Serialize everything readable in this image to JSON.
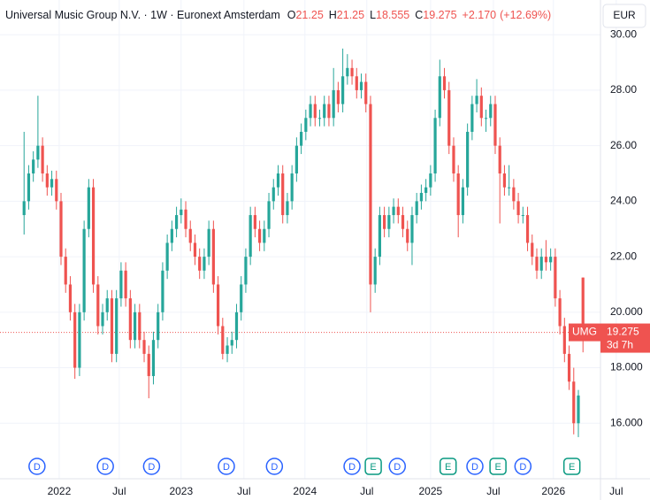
{
  "chart_data": {
    "type": "candlestick",
    "title": "Universal Music Group N.V. · 1W · Euronext Amsterdam",
    "legend_ohlc": [
      {
        "label": "O",
        "value": 21.25
      },
      {
        "label": "H",
        "value": 21.25
      },
      {
        "label": "L",
        "value": 18.555
      },
      {
        "label": "C",
        "value": 19.275
      }
    ],
    "change": "+2.170",
    "change_pct": "(+12.69%)",
    "currency": "EUR",
    "symbol": "UMG",
    "last_price": 19.275,
    "last_price_label": "19.275",
    "countdown": "3d 7h",
    "up_color": "#26a69a",
    "down_color": "#ef5350",
    "grid": true,
    "ylim": [
      14,
      31.25
    ],
    "yticks": [
      {
        "value": 16,
        "label": "16.000"
      },
      {
        "value": 18,
        "label": "18.000"
      },
      {
        "value": 20,
        "label": "20.000"
      },
      {
        "value": 22,
        "label": "22.00"
      },
      {
        "value": 24,
        "label": "24.00"
      },
      {
        "value": 26,
        "label": "26.00"
      },
      {
        "value": 28,
        "label": "28.00"
      },
      {
        "value": 30,
        "label": "30.00"
      }
    ],
    "xlim": [
      -1,
      129
    ],
    "xticks": [
      {
        "value": 7.6,
        "label": "2022"
      },
      {
        "value": 20.6,
        "label": "Jul"
      },
      {
        "value": 34,
        "label": "2023"
      },
      {
        "value": 47.6,
        "label": "Jul"
      },
      {
        "value": 60.8,
        "label": "2024"
      },
      {
        "value": 74.2,
        "label": "Jul"
      },
      {
        "value": 88,
        "label": "2025"
      },
      {
        "value": 101.6,
        "label": "Jul"
      },
      {
        "value": 114.6,
        "label": "2026"
      },
      {
        "value": 128.2,
        "label": "Jul"
      }
    ],
    "events": [
      {
        "label": "D",
        "x": 2.8
      },
      {
        "label": "D",
        "x": 17.6
      },
      {
        "label": "D",
        "x": 27.6
      },
      {
        "label": "D",
        "x": 43.8
      },
      {
        "label": "D",
        "x": 54.2
      },
      {
        "label": "D",
        "x": 71
      },
      {
        "label": "E",
        "x": 75.6
      },
      {
        "label": "D",
        "x": 80.8
      },
      {
        "label": "E",
        "x": 91.8
      },
      {
        "label": "D",
        "x": 97.6
      },
      {
        "label": "E",
        "x": 102.6
      },
      {
        "label": "D",
        "x": 108
      },
      {
        "label": "E",
        "x": 118.6
      }
    ],
    "ohlc": [
      [
        23.5,
        26.5,
        22.8,
        24
      ],
      [
        24,
        25.3,
        23.7,
        25
      ],
      [
        25,
        25.8,
        24.7,
        25.5
      ],
      [
        25.5,
        27.8,
        25.2,
        26
      ],
      [
        26,
        26.3,
        24.7,
        25
      ],
      [
        25,
        25.3,
        24.2,
        24.5
      ],
      [
        24.5,
        25.1,
        24.2,
        24.8
      ],
      [
        24.8,
        25.1,
        23.7,
        24
      ],
      [
        24,
        24.3,
        21.7,
        22
      ],
      [
        22,
        22.3,
        20.7,
        21
      ],
      [
        21,
        21.3,
        19.7,
        20
      ],
      [
        20,
        20.3,
        17.6,
        18
      ],
      [
        18,
        20.3,
        17.7,
        20
      ],
      [
        20,
        23.3,
        19.7,
        23
      ],
      [
        23,
        24.8,
        22.7,
        24.5
      ],
      [
        24.5,
        24.8,
        20.7,
        21
      ],
      [
        21,
        21.3,
        19.2,
        19.5
      ],
      [
        19.5,
        20.3,
        19.2,
        20
      ],
      [
        20,
        20.8,
        19.7,
        20.5
      ],
      [
        20.5,
        20.8,
        18.2,
        18.5
      ],
      [
        18.5,
        20.8,
        18.2,
        20.5
      ],
      [
        20.5,
        21.8,
        20.2,
        21.5
      ],
      [
        21.5,
        21.8,
        20.2,
        20.5
      ],
      [
        20.5,
        20.8,
        18.7,
        19
      ],
      [
        19,
        20.3,
        18.7,
        20
      ],
      [
        20,
        20.3,
        18.7,
        19
      ],
      [
        19,
        19.3,
        18.2,
        18.5
      ],
      [
        18.5,
        18.8,
        16.9,
        17.7
      ],
      [
        17.7,
        19.3,
        17.4,
        19
      ],
      [
        19,
        20.3,
        18.7,
        20
      ],
      [
        20,
        21.8,
        19.7,
        21.5
      ],
      [
        21.5,
        22.8,
        21.2,
        22.5
      ],
      [
        22.5,
        23.3,
        22.2,
        23
      ],
      [
        23,
        23.8,
        22.7,
        23.5
      ],
      [
        23.5,
        24.1,
        23.2,
        23.7
      ],
      [
        23.7,
        24,
        22.7,
        23
      ],
      [
        23,
        23.3,
        22.2,
        22.5
      ],
      [
        22.5,
        22.8,
        21.7,
        22
      ],
      [
        22,
        22.3,
        21.2,
        21.5
      ],
      [
        21.5,
        22.3,
        21.2,
        22
      ],
      [
        22,
        23.3,
        21.7,
        23
      ],
      [
        23,
        23.3,
        20.7,
        21
      ],
      [
        21,
        21.3,
        19.2,
        19.5
      ],
      [
        19.5,
        19.8,
        18.3,
        18.5
      ],
      [
        18.5,
        19.1,
        18.2,
        18.8
      ],
      [
        18.8,
        19.3,
        18.5,
        19
      ],
      [
        19,
        20.3,
        18.7,
        20
      ],
      [
        20,
        21.3,
        19.7,
        21
      ],
      [
        21,
        22.3,
        20.7,
        22
      ],
      [
        22,
        23.8,
        21.7,
        23.5
      ],
      [
        23.5,
        23.8,
        22.7,
        23
      ],
      [
        23,
        23.3,
        22.2,
        22.5
      ],
      [
        22.5,
        23.3,
        22.2,
        23
      ],
      [
        23,
        24.3,
        22.7,
        24
      ],
      [
        24,
        24.8,
        23.7,
        24.5
      ],
      [
        24.5,
        25.3,
        24.2,
        25
      ],
      [
        25,
        25.3,
        23.2,
        23.5
      ],
      [
        23.5,
        24.3,
        23.2,
        24
      ],
      [
        24,
        25.3,
        23.7,
        25
      ],
      [
        25,
        26.3,
        24.7,
        26
      ],
      [
        26,
        26.8,
        25.7,
        26.5
      ],
      [
        26.5,
        27.3,
        26.2,
        27
      ],
      [
        27,
        27.8,
        26.7,
        27.5
      ],
      [
        27.5,
        27.8,
        26.7,
        27
      ],
      [
        27,
        27.3,
        26.7,
        27
      ],
      [
        27,
        27.8,
        26.7,
        27.5
      ],
      [
        27.5,
        27.8,
        26.7,
        27
      ],
      [
        27,
        28.8,
        26.7,
        28
      ],
      [
        28,
        28.3,
        27.2,
        27.5
      ],
      [
        27.5,
        29.5,
        27.2,
        28.5
      ],
      [
        28.5,
        29.3,
        28.2,
        28.8
      ],
      [
        28.8,
        29.1,
        28.2,
        28.5
      ],
      [
        28.5,
        28.8,
        27.7,
        28
      ],
      [
        28,
        28.6,
        27.7,
        28.3
      ],
      [
        28.3,
        28.6,
        27.2,
        27.5
      ],
      [
        27.5,
        27.8,
        20,
        21
      ],
      [
        21,
        22.3,
        20.7,
        22
      ],
      [
        22,
        23.8,
        21.7,
        23.5
      ],
      [
        23.5,
        23.8,
        22.7,
        23
      ],
      [
        23,
        23.8,
        22.7,
        23.5
      ],
      [
        23.5,
        24.1,
        23.2,
        23.8
      ],
      [
        23.8,
        24.1,
        23.2,
        23.5
      ],
      [
        23.5,
        23.8,
        22.7,
        23
      ],
      [
        23,
        23.3,
        22.2,
        22.5
      ],
      [
        22.5,
        23.8,
        21.7,
        23.5
      ],
      [
        23.5,
        24.3,
        23.2,
        24
      ],
      [
        24,
        24.6,
        23.7,
        24.3
      ],
      [
        24.3,
        24.8,
        24,
        24.5
      ],
      [
        24.5,
        25.3,
        24.2,
        25
      ],
      [
        25,
        27.3,
        24.7,
        27
      ],
      [
        27,
        29.1,
        26.7,
        28.5
      ],
      [
        28.5,
        28.8,
        27.7,
        28
      ],
      [
        28,
        28.3,
        25.7,
        26
      ],
      [
        26,
        26.3,
        24.7,
        25
      ],
      [
        25,
        25.3,
        22.7,
        23.5
      ],
      [
        23.5,
        24.8,
        23.2,
        24.5
      ],
      [
        24.5,
        26.8,
        24.2,
        26.5
      ],
      [
        26.5,
        27.8,
        26.2,
        27.5
      ],
      [
        27.5,
        28.4,
        27.2,
        27.8
      ],
      [
        27.8,
        28.1,
        26.7,
        27
      ],
      [
        27,
        27.3,
        26.5,
        27
      ],
      [
        27,
        27.8,
        26.7,
        27.5
      ],
      [
        27.5,
        27.8,
        25.7,
        26
      ],
      [
        26,
        26.3,
        23.2,
        25
      ],
      [
        25,
        25.3,
        24.2,
        24.5
      ],
      [
        24.5,
        25.3,
        24.2,
        24.5
      ],
      [
        24.5,
        24.8,
        23.7,
        24
      ],
      [
        24,
        24.3,
        23.2,
        23.5
      ],
      [
        23.5,
        23.8,
        23.2,
        23.5
      ],
      [
        23.5,
        23.8,
        22.2,
        22.5
      ],
      [
        22.5,
        22.8,
        21.7,
        22
      ],
      [
        22,
        22.3,
        21.2,
        21.5
      ],
      [
        21.5,
        22.3,
        21.2,
        22
      ],
      [
        22,
        22.6,
        21.5,
        21.8
      ],
      [
        21.8,
        22.3,
        21.5,
        22
      ],
      [
        22,
        22.3,
        20.2,
        20.5
      ],
      [
        20.5,
        20.8,
        19.2,
        19.5
      ],
      [
        19.5,
        19.8,
        18.2,
        18.5
      ],
      [
        18.5,
        18.8,
        17.2,
        17.5
      ],
      [
        17.5,
        18,
        15.6,
        16
      ],
      [
        16,
        17.2,
        15.5,
        17
      ],
      [
        21.25,
        21.25,
        18.555,
        19.275
      ]
    ]
  }
}
